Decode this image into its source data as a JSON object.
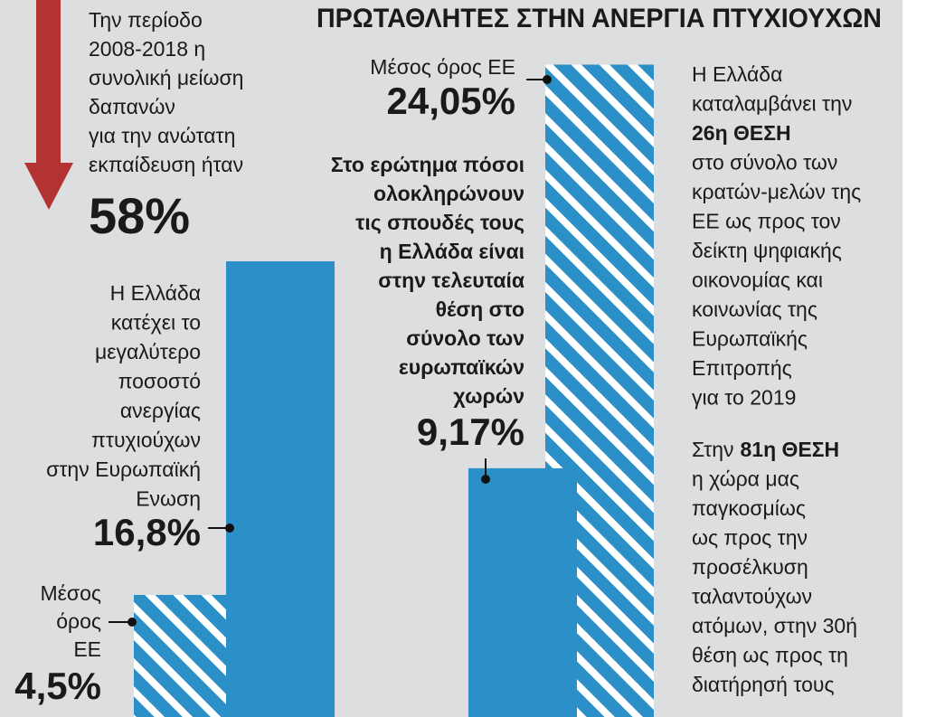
{
  "header": {
    "title": "ΠΡΩΤΑΘΛΗΤΕΣ ΣΤΗΝ ΑΝΕΡΓΙΑ ΠΤΥΧΙΟΥΧΩΝ"
  },
  "intro": {
    "lines": [
      "Την περίοδο",
      "2008-2018 η",
      "συνολική μείωση",
      "δαπανών",
      "για την ανώτατη",
      "εκπαίδευση ήταν"
    ],
    "value_label": "58%"
  },
  "groups": [
    {
      "bars": [
        {
          "value": 4.5,
          "value_label": "4,5%",
          "caption": [
            "Μέσος",
            "όρος",
            "ΕΕ"
          ]
        },
        {
          "value": 16.8,
          "value_label": "16,8%",
          "caption": [
            "Η Ελλάδα",
            "κατέχει το",
            "μεγαλύτερο",
            "ποσοστό",
            "ανεργίας",
            "πτυχιούχων",
            "στην Ευρωπαϊκή",
            "Ενωση"
          ]
        }
      ]
    },
    {
      "bars": [
        {
          "value": 24.05,
          "value_label": "24,05%",
          "caption": [
            "Μέσος όρος ΕΕ"
          ]
        },
        {
          "value": 9.17,
          "value_label": "9,17%",
          "caption": [
            "Στο ερώτημα πόσοι",
            "ολοκληρώνουν",
            "τις σπουδές τους",
            "η Ελλάδα είναι",
            "στην τελευταία",
            "θέση στο",
            "σύνολο των",
            "ευρωπαϊκών",
            "χωρών"
          ]
        }
      ]
    }
  ],
  "notes": [
    {
      "lines": [
        "Η Ελλάδα",
        "καταλαμβάνει την",
        "26η ΘΕΣΗ",
        "στο σύνολο των",
        "κρατών-μελών της",
        "ΕΕ ως προς τον",
        "δείκτη ψηφιακής",
        "οικονομίας και",
        "κοινωνίας της",
        "Ευρωπαϊκής",
        "Επιτροπής",
        "για το 2019"
      ]
    },
    {
      "lines": [
        [
          "Στην",
          "81η ΘΕΣΗ"
        ],
        "η χώρα μας",
        "παγκοσμίως",
        "ως προς την",
        "προσέλκυση",
        "ταλαντούχων",
        "ατόμων, στην 30ή",
        "θέση ως προς τη",
        "διατήρησή τους"
      ]
    }
  ]
}
